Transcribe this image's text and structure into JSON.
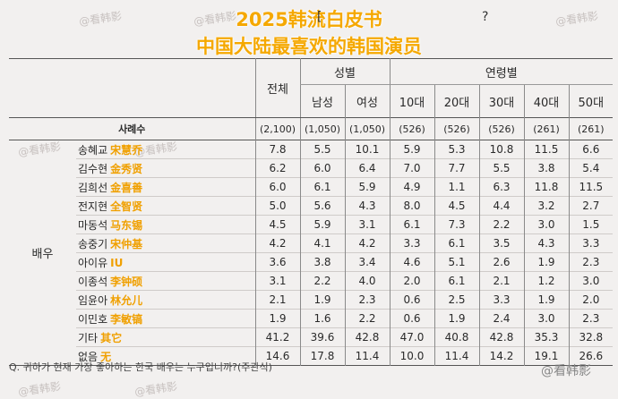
{
  "title": {
    "line1": "2025韩流白皮书",
    "line2": "中国大陆最喜欢的韩国演员",
    "bracket": "[",
    "qmark": "?"
  },
  "watermark": "@看韩影",
  "brand": "@看韩影",
  "table": {
    "col_total": "전체",
    "group_gender": "성별",
    "group_age": "연령별",
    "cols": [
      "남성",
      "여성",
      "10대",
      "20대",
      "30대",
      "40대",
      "50대"
    ],
    "sample_label": "사례수",
    "sample_total": "(2,100)",
    "sample_values": [
      "(1,050)",
      "(1,050)",
      "(526)",
      "(526)",
      "(526)",
      "(261)",
      "(261)"
    ],
    "side_label": "배우",
    "rows": [
      {
        "kr": "송혜교",
        "cn": "宋慧乔",
        "total": "7.8",
        "values": [
          "5.5",
          "10.1",
          "5.9",
          "5.3",
          "10.8",
          "11.5",
          "6.6"
        ]
      },
      {
        "kr": "김수현",
        "cn": "金秀贤",
        "total": "6.2",
        "values": [
          "6.0",
          "6.4",
          "7.0",
          "7.7",
          "5.5",
          "3.8",
          "5.4"
        ]
      },
      {
        "kr": "김희선",
        "cn": "金喜善",
        "total": "6.0",
        "values": [
          "6.1",
          "5.9",
          "4.9",
          "1.1",
          "6.3",
          "11.8",
          "11.5"
        ]
      },
      {
        "kr": "전지현",
        "cn": "全智贤",
        "total": "5.0",
        "values": [
          "5.6",
          "4.3",
          "8.0",
          "4.5",
          "4.4",
          "3.2",
          "2.7"
        ]
      },
      {
        "kr": "마동석",
        "cn": "马东锡",
        "total": "4.5",
        "values": [
          "5.9",
          "3.1",
          "6.1",
          "7.3",
          "2.2",
          "3.0",
          "1.5"
        ]
      },
      {
        "kr": "송중기",
        "cn": "宋仲基",
        "total": "4.2",
        "values": [
          "4.1",
          "4.2",
          "3.3",
          "6.1",
          "3.5",
          "4.3",
          "3.3"
        ]
      },
      {
        "kr": "아이유",
        "cn": "IU",
        "total": "3.6",
        "values": [
          "3.8",
          "3.4",
          "4.6",
          "5.1",
          "2.6",
          "1.9",
          "2.3"
        ]
      },
      {
        "kr": "이종석",
        "cn": "李钟硕",
        "total": "3.1",
        "values": [
          "2.2",
          "4.0",
          "2.0",
          "6.1",
          "2.1",
          "1.2",
          "3.0"
        ]
      },
      {
        "kr": "임윤아",
        "cn": "林允儿",
        "total": "2.1",
        "values": [
          "1.9",
          "2.3",
          "0.6",
          "2.5",
          "3.3",
          "1.9",
          "2.0"
        ]
      },
      {
        "kr": "이민호",
        "cn": "李敏镐",
        "total": "1.9",
        "values": [
          "1.6",
          "2.2",
          "0.6",
          "1.9",
          "2.4",
          "3.0",
          "2.3"
        ]
      },
      {
        "kr": "기타",
        "cn": "其它",
        "total": "41.2",
        "values": [
          "39.6",
          "42.8",
          "47.0",
          "40.8",
          "42.8",
          "35.3",
          "32.8"
        ]
      },
      {
        "kr": "없음",
        "cn": "无",
        "total": "14.6",
        "values": [
          "17.8",
          "11.4",
          "10.0",
          "11.4",
          "14.2",
          "19.1",
          "26.6"
        ]
      }
    ]
  },
  "footnote": "Q. 귀하가 현재 가장 좋아하는 한국 배우는 누구입니까?(주관식)",
  "colors": {
    "accent": "#f5a800",
    "cn_label": "#f0a000",
    "background": "#f2f0ef"
  }
}
